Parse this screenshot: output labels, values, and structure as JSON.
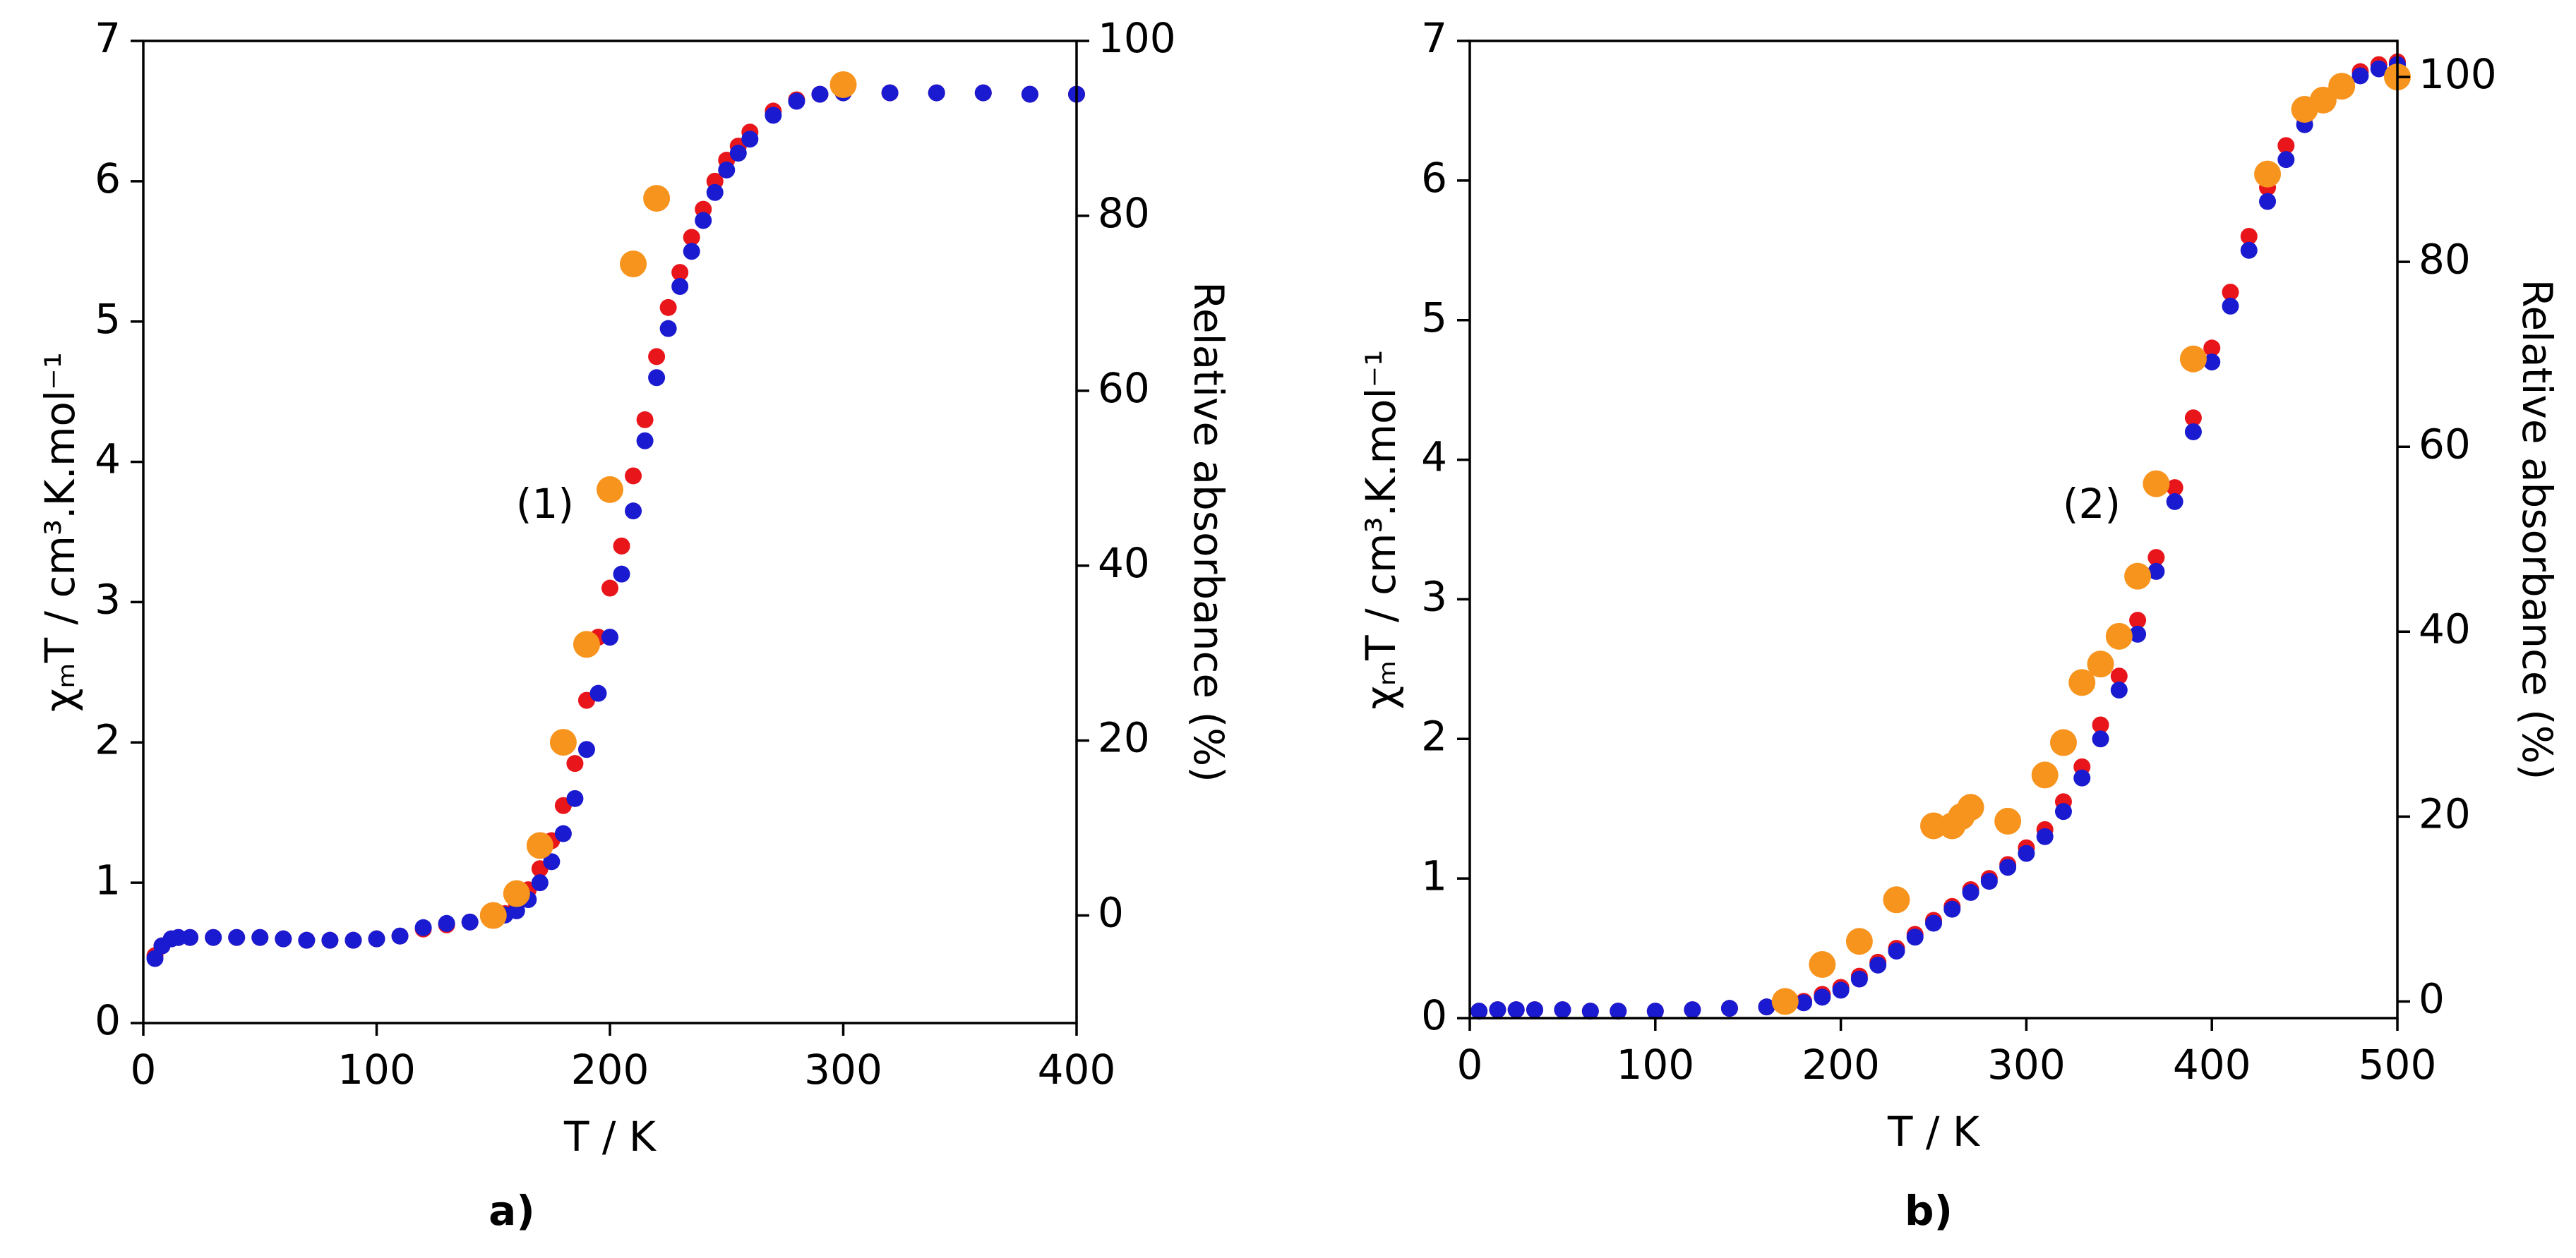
{
  "chart_data": [
    {
      "type": "scatter",
      "panel_label": "a)",
      "annotation": "(1)",
      "x_label": "T / K",
      "y_label": "χₘT / cm³.K.mol⁻¹",
      "y2_label": "Relative absorbance (%)",
      "xlim": [
        0,
        400
      ],
      "xticks": [
        0,
        100,
        200,
        300,
        400
      ],
      "ylim": [
        0,
        7
      ],
      "yticks": [
        0,
        1,
        2,
        3,
        4,
        5,
        6,
        7
      ],
      "y2lim": [
        -12.3,
        100
      ],
      "y2ticks": [
        0,
        20,
        40,
        60,
        80,
        100
      ],
      "series": [
        {
          "color": "#e8151b",
          "x": [
            5,
            8,
            12,
            15,
            20,
            30,
            40,
            50,
            60,
            70,
            80,
            90,
            100,
            110,
            120,
            130,
            140,
            150,
            155,
            160,
            165,
            170,
            175,
            180,
            185,
            190,
            195,
            200,
            205,
            210,
            215,
            220,
            225,
            230,
            235,
            240,
            245,
            250,
            255,
            260,
            270,
            280,
            290,
            300,
            320,
            340,
            360,
            380,
            400
          ],
          "values": [
            0.48,
            0.55,
            0.6,
            0.61,
            0.61,
            0.61,
            0.61,
            0.61,
            0.6,
            0.59,
            0.59,
            0.59,
            0.6,
            0.62,
            0.67,
            0.7,
            0.72,
            0.75,
            0.78,
            0.85,
            0.95,
            1.1,
            1.3,
            1.55,
            1.85,
            2.3,
            2.75,
            3.1,
            3.4,
            3.9,
            4.3,
            4.75,
            5.1,
            5.35,
            5.6,
            5.8,
            6.0,
            6.15,
            6.25,
            6.35,
            6.5,
            6.58,
            6.62,
            6.63,
            6.63,
            6.63,
            6.63,
            6.62,
            6.62
          ]
        },
        {
          "color": "#1a1ad0",
          "x": [
            5,
            8,
            12,
            15,
            20,
            30,
            40,
            50,
            60,
            70,
            80,
            90,
            100,
            110,
            120,
            130,
            140,
            150,
            155,
            160,
            165,
            170,
            175,
            180,
            185,
            190,
            195,
            200,
            205,
            210,
            215,
            220,
            225,
            230,
            235,
            240,
            245,
            250,
            255,
            260,
            270,
            280,
            290,
            300,
            320,
            340,
            360,
            380,
            400
          ],
          "values": [
            0.46,
            0.55,
            0.6,
            0.61,
            0.61,
            0.61,
            0.61,
            0.61,
            0.6,
            0.59,
            0.59,
            0.59,
            0.6,
            0.62,
            0.68,
            0.71,
            0.72,
            0.75,
            0.77,
            0.8,
            0.88,
            1.0,
            1.15,
            1.35,
            1.6,
            1.95,
            2.35,
            2.75,
            3.2,
            3.65,
            4.15,
            4.6,
            4.95,
            5.25,
            5.5,
            5.72,
            5.92,
            6.08,
            6.2,
            6.3,
            6.47,
            6.57,
            6.62,
            6.63,
            6.63,
            6.63,
            6.63,
            6.62,
            6.62
          ]
        },
        {
          "color": "#f7941d",
          "axis": "y2",
          "x": [
            150,
            160,
            170,
            180,
            190,
            200,
            210,
            220,
            300
          ],
          "values": [
            0,
            2.5,
            8,
            19.8,
            31,
            48.7,
            74.5,
            82,
            95
          ]
        }
      ]
    },
    {
      "type": "scatter",
      "panel_label": "b)",
      "annotation": "(2)",
      "x_label": "T / K",
      "y_label": "χₘT / cm³.K.mol⁻¹",
      "y2_label": "Relative absorbance (%)",
      "xlim": [
        0,
        500
      ],
      "xticks": [
        0,
        100,
        200,
        300,
        400,
        500
      ],
      "ylim": [
        0,
        7
      ],
      "yticks": [
        0,
        1,
        2,
        3,
        4,
        5,
        6,
        7
      ],
      "y2lim": [
        -1.8,
        103.9
      ],
      "y2ticks": [
        0,
        20,
        40,
        60,
        80,
        100
      ],
      "series": [
        {
          "color": "#e8151b",
          "x": [
            5,
            15,
            25,
            35,
            50,
            65,
            80,
            100,
            120,
            140,
            160,
            170,
            180,
            190,
            200,
            210,
            220,
            230,
            240,
            250,
            260,
            270,
            280,
            290,
            300,
            310,
            320,
            330,
            340,
            350,
            360,
            370,
            380,
            390,
            400,
            410,
            420,
            430,
            440,
            450,
            460,
            470,
            480,
            490,
            500
          ],
          "values": [
            0.05,
            0.06,
            0.06,
            0.06,
            0.06,
            0.05,
            0.05,
            0.05,
            0.06,
            0.07,
            0.08,
            0.09,
            0.12,
            0.17,
            0.22,
            0.3,
            0.4,
            0.5,
            0.6,
            0.7,
            0.8,
            0.92,
            1.0,
            1.1,
            1.22,
            1.35,
            1.55,
            1.8,
            2.1,
            2.45,
            2.85,
            3.3,
            3.8,
            4.3,
            4.8,
            5.2,
            5.6,
            5.95,
            6.25,
            6.45,
            6.6,
            6.7,
            6.78,
            6.83,
            6.85
          ]
        },
        {
          "color": "#1a1ad0",
          "x": [
            5,
            15,
            25,
            35,
            50,
            65,
            80,
            100,
            120,
            140,
            160,
            170,
            180,
            190,
            200,
            210,
            220,
            230,
            240,
            250,
            260,
            270,
            280,
            290,
            300,
            310,
            320,
            330,
            340,
            350,
            360,
            370,
            380,
            390,
            400,
            410,
            420,
            430,
            440,
            450,
            460,
            470,
            480,
            490,
            500
          ],
          "values": [
            0.05,
            0.06,
            0.06,
            0.06,
            0.06,
            0.05,
            0.05,
            0.05,
            0.06,
            0.07,
            0.08,
            0.09,
            0.11,
            0.15,
            0.2,
            0.28,
            0.38,
            0.48,
            0.58,
            0.68,
            0.78,
            0.9,
            0.98,
            1.08,
            1.18,
            1.3,
            1.48,
            1.72,
            2.0,
            2.35,
            2.75,
            3.2,
            3.7,
            4.2,
            4.7,
            5.1,
            5.5,
            5.85,
            6.15,
            6.4,
            6.55,
            6.65,
            6.75,
            6.8,
            6.83
          ]
        },
        {
          "color": "#f7941d",
          "axis": "y2",
          "x": [
            170,
            190,
            210,
            230,
            250,
            260,
            265,
            270,
            290,
            310,
            320,
            330,
            340,
            350,
            360,
            370,
            390,
            430,
            450,
            460,
            470,
            500
          ],
          "values": [
            0,
            4,
            6.5,
            11,
            19,
            19,
            20,
            21,
            19.5,
            24.5,
            28,
            34.5,
            36.5,
            39.5,
            46,
            56,
            69.5,
            89.5,
            96.5,
            97.5,
            99,
            100
          ]
        }
      ]
    }
  ]
}
